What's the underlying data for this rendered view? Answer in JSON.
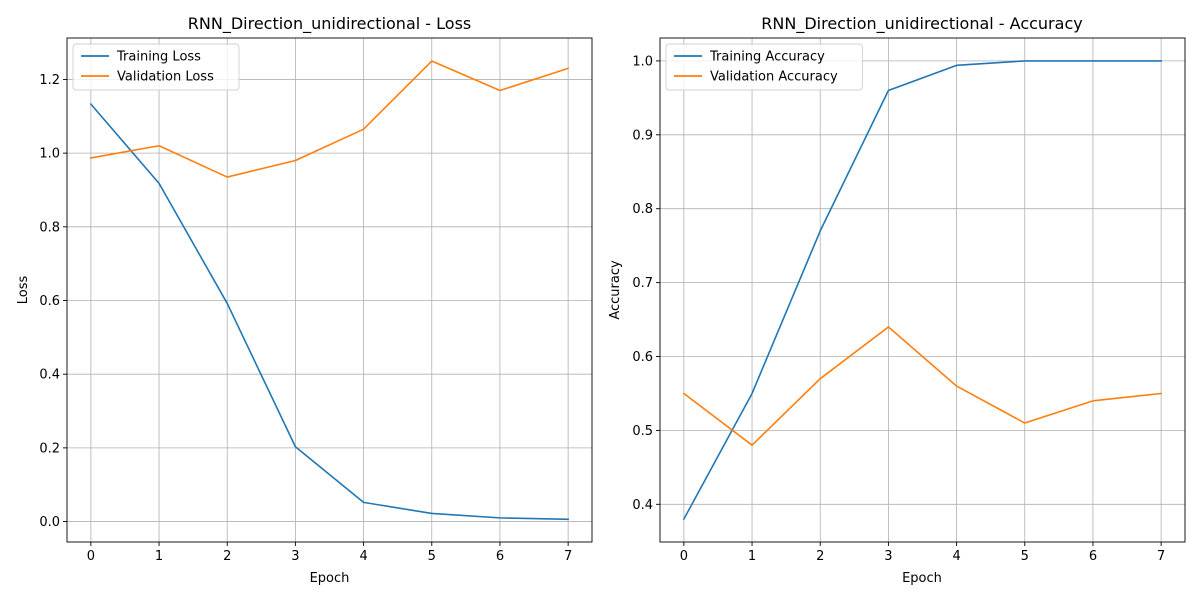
{
  "chart_data": [
    {
      "type": "line",
      "title": "RNN_Direction_unidirectional - Loss",
      "xlabel": "Epoch",
      "ylabel": "Loss",
      "x": [
        0,
        1,
        2,
        3,
        4,
        5,
        6,
        7
      ],
      "xlim": [
        -0.35,
        7.35
      ],
      "ylim": [
        -0.0555,
        1.3125
      ],
      "xticks": [
        "0",
        "1",
        "2",
        "3",
        "4",
        "5",
        "6",
        "7"
      ],
      "yticks": [
        "0.0",
        "0.2",
        "0.4",
        "0.6",
        "0.8",
        "1.0",
        "1.2"
      ],
      "grid": true,
      "legend_position": "upper-left",
      "series": [
        {
          "name": "Training Loss",
          "color": "#1f77b4",
          "values": [
            1.133,
            0.918,
            0.592,
            0.203,
            0.052,
            0.022,
            0.01,
            0.006
          ]
        },
        {
          "name": "Validation Loss",
          "color": "#ff7f0e",
          "values": [
            0.987,
            1.02,
            0.935,
            0.98,
            1.065,
            1.25,
            1.17,
            1.23
          ]
        }
      ]
    },
    {
      "type": "line",
      "title": "RNN_Direction_unidirectional - Accuracy",
      "xlabel": "Epoch",
      "ylabel": "Accuracy",
      "x": [
        0,
        1,
        2,
        3,
        4,
        5,
        6,
        7
      ],
      "xlim": [
        -0.35,
        7.35
      ],
      "ylim": [
        0.349,
        1.031
      ],
      "xticks": [
        "0",
        "1",
        "2",
        "3",
        "4",
        "5",
        "6",
        "7"
      ],
      "yticks": [
        "0.4",
        "0.5",
        "0.6",
        "0.7",
        "0.8",
        "0.9",
        "1.0"
      ],
      "grid": true,
      "legend_position": "upper-left",
      "series": [
        {
          "name": "Training Accuracy",
          "color": "#1f77b4",
          "values": [
            0.38,
            0.55,
            0.77,
            0.96,
            0.994,
            1.0,
            1.0,
            1.0
          ]
        },
        {
          "name": "Validation Accuracy",
          "color": "#ff7f0e",
          "values": [
            0.55,
            0.48,
            0.57,
            0.64,
            0.56,
            0.51,
            0.54,
            0.55
          ]
        }
      ]
    }
  ]
}
